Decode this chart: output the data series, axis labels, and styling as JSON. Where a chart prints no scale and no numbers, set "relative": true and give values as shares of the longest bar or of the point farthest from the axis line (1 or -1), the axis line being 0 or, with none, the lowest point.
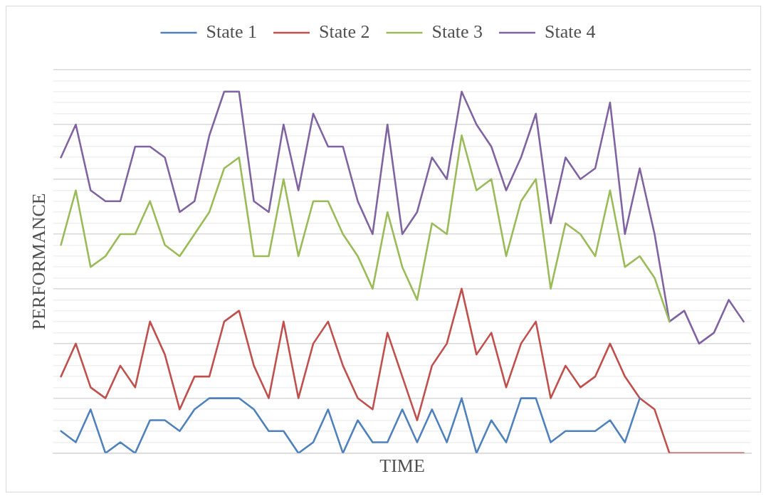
{
  "chart_data": {
    "type": "line",
    "relative": true,
    "xlabel": "TIME",
    "ylabel": "PERFORMANCE",
    "legend": "top",
    "grid": "y",
    "marker": "none",
    "line_style": "solid",
    "tick_labels": false,
    "categories": [
      null,
      null,
      null,
      null,
      null,
      null,
      null,
      null,
      null,
      null,
      null,
      null,
      null,
      null,
      null,
      null,
      null,
      null,
      null,
      null,
      null,
      null,
      null,
      null,
      null,
      null,
      null,
      null,
      null,
      null,
      null,
      null,
      null,
      null,
      null,
      null,
      null,
      null,
      null,
      null,
      null,
      null,
      null,
      null,
      null,
      null,
      null
    ],
    "series": [
      {
        "name": "State 1",
        "color": "#4f81bd",
        "values": [
          0.061,
          0.03,
          0.121,
          0,
          0.03,
          0,
          0.091,
          0.091,
          0.061,
          0.121,
          0.152,
          0.152,
          0.152,
          0.121,
          0.061,
          0.061,
          0,
          0.03,
          0.121,
          0,
          0.091,
          0.03,
          0.03,
          0.121,
          0.03,
          0.121,
          0.03,
          0.152,
          0,
          0.091,
          0.03,
          0.152,
          0.152,
          0.03,
          0.061,
          0.061,
          0.061,
          0.091,
          0.03,
          0.152,
          null,
          null,
          null,
          null,
          null,
          null,
          null
        ]
      },
      {
        "name": "State 2",
        "color": "#c0504d",
        "values": [
          0.212,
          0.303,
          0.182,
          0.152,
          0.242,
          0.182,
          0.364,
          0.273,
          0.121,
          0.212,
          0.212,
          0.364,
          0.394,
          0.242,
          0.152,
          0.364,
          0.152,
          0.303,
          0.364,
          0.242,
          0.152,
          0.121,
          0.333,
          0.212,
          0.091,
          0.242,
          0.303,
          0.455,
          0.273,
          0.333,
          0.182,
          0.303,
          0.364,
          0.152,
          0.242,
          0.182,
          0.212,
          0.303,
          0.212,
          0.152,
          0.121,
          0,
          0,
          0,
          0,
          0,
          0
        ]
      },
      {
        "name": "State 3",
        "color": "#9bbb59",
        "values": [
          0.576,
          0.727,
          0.515,
          0.545,
          0.606,
          0.606,
          0.697,
          0.576,
          0.545,
          0.606,
          0.667,
          0.788,
          0.818,
          0.545,
          0.545,
          0.758,
          0.545,
          0.697,
          0.697,
          0.606,
          0.545,
          0.455,
          0.667,
          0.515,
          0.424,
          0.636,
          0.606,
          0.879,
          0.727,
          0.758,
          0.545,
          0.697,
          0.758,
          0.455,
          0.636,
          0.606,
          0.545,
          0.727,
          0.515,
          0.545,
          0.485,
          0.364,
          null,
          null,
          null,
          null,
          null
        ]
      },
      {
        "name": "State 4",
        "color": "#8064a2",
        "values": [
          0.818,
          0.909,
          0.727,
          0.697,
          0.697,
          0.848,
          0.848,
          0.818,
          0.667,
          0.697,
          0.879,
          1,
          1,
          0.697,
          0.667,
          0.909,
          0.727,
          0.939,
          0.848,
          0.848,
          0.697,
          0.606,
          0.909,
          0.606,
          0.667,
          0.818,
          0.758,
          1,
          0.909,
          0.848,
          0.727,
          0.818,
          0.939,
          0.636,
          0.818,
          0.758,
          0.788,
          0.97,
          0.606,
          0.788,
          0.606,
          0.364,
          0.394,
          0.303,
          0.333,
          0.424,
          0.364
        ]
      }
    ]
  }
}
